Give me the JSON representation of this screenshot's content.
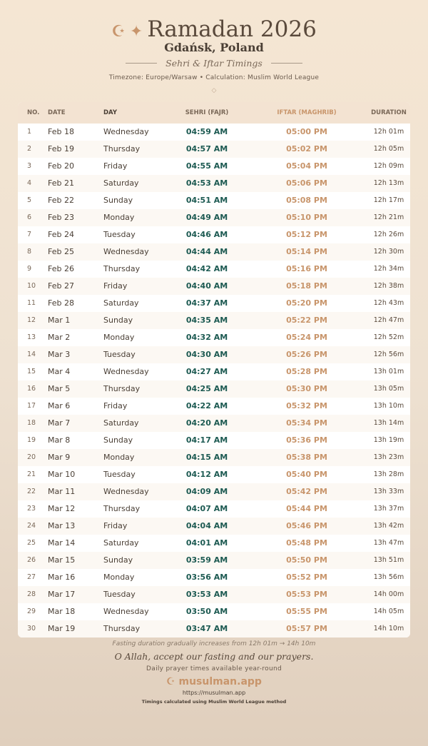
{
  "header": {
    "title": "Ramadan 2026",
    "city": "Gdańsk, Poland",
    "subtitle": "Sehri & Iftar Timings",
    "meta": "Timezone: Europe/Warsaw • Calculation: Muslim World League",
    "ornament": "◇",
    "icons": [
      "crescent-moon-icon",
      "star-icon"
    ]
  },
  "table": {
    "columns": [
      "NO.",
      "DATE",
      "DAY",
      "SEHRI (FAJR)",
      "IFTAR (MAGHRIB)",
      "DURATION"
    ],
    "rows": [
      [
        "1",
        "Feb 18",
        "Wednesday",
        "04:59 AM",
        "05:00 PM",
        "12h 01m"
      ],
      [
        "2",
        "Feb 19",
        "Thursday",
        "04:57 AM",
        "05:02 PM",
        "12h 05m"
      ],
      [
        "3",
        "Feb 20",
        "Friday",
        "04:55 AM",
        "05:04 PM",
        "12h 09m"
      ],
      [
        "4",
        "Feb 21",
        "Saturday",
        "04:53 AM",
        "05:06 PM",
        "12h 13m"
      ],
      [
        "5",
        "Feb 22",
        "Sunday",
        "04:51 AM",
        "05:08 PM",
        "12h 17m"
      ],
      [
        "6",
        "Feb 23",
        "Monday",
        "04:49 AM",
        "05:10 PM",
        "12h 21m"
      ],
      [
        "7",
        "Feb 24",
        "Tuesday",
        "04:46 AM",
        "05:12 PM",
        "12h 26m"
      ],
      [
        "8",
        "Feb 25",
        "Wednesday",
        "04:44 AM",
        "05:14 PM",
        "12h 30m"
      ],
      [
        "9",
        "Feb 26",
        "Thursday",
        "04:42 AM",
        "05:16 PM",
        "12h 34m"
      ],
      [
        "10",
        "Feb 27",
        "Friday",
        "04:40 AM",
        "05:18 PM",
        "12h 38m"
      ],
      [
        "11",
        "Feb 28",
        "Saturday",
        "04:37 AM",
        "05:20 PM",
        "12h 43m"
      ],
      [
        "12",
        "Mar 1",
        "Sunday",
        "04:35 AM",
        "05:22 PM",
        "12h 47m"
      ],
      [
        "13",
        "Mar 2",
        "Monday",
        "04:32 AM",
        "05:24 PM",
        "12h 52m"
      ],
      [
        "14",
        "Mar 3",
        "Tuesday",
        "04:30 AM",
        "05:26 PM",
        "12h 56m"
      ],
      [
        "15",
        "Mar 4",
        "Wednesday",
        "04:27 AM",
        "05:28 PM",
        "13h 01m"
      ],
      [
        "16",
        "Mar 5",
        "Thursday",
        "04:25 AM",
        "05:30 PM",
        "13h 05m"
      ],
      [
        "17",
        "Mar 6",
        "Friday",
        "04:22 AM",
        "05:32 PM",
        "13h 10m"
      ],
      [
        "18",
        "Mar 7",
        "Saturday",
        "04:20 AM",
        "05:34 PM",
        "13h 14m"
      ],
      [
        "19",
        "Mar 8",
        "Sunday",
        "04:17 AM",
        "05:36 PM",
        "13h 19m"
      ],
      [
        "20",
        "Mar 9",
        "Monday",
        "04:15 AM",
        "05:38 PM",
        "13h 23m"
      ],
      [
        "21",
        "Mar 10",
        "Tuesday",
        "04:12 AM",
        "05:40 PM",
        "13h 28m"
      ],
      [
        "22",
        "Mar 11",
        "Wednesday",
        "04:09 AM",
        "05:42 PM",
        "13h 33m"
      ],
      [
        "23",
        "Mar 12",
        "Thursday",
        "04:07 AM",
        "05:44 PM",
        "13h 37m"
      ],
      [
        "24",
        "Mar 13",
        "Friday",
        "04:04 AM",
        "05:46 PM",
        "13h 42m"
      ],
      [
        "25",
        "Mar 14",
        "Saturday",
        "04:01 AM",
        "05:48 PM",
        "13h 47m"
      ],
      [
        "26",
        "Mar 15",
        "Sunday",
        "03:59 AM",
        "05:50 PM",
        "13h 51m"
      ],
      [
        "27",
        "Mar 16",
        "Monday",
        "03:56 AM",
        "05:52 PM",
        "13h 56m"
      ],
      [
        "28",
        "Mar 17",
        "Tuesday",
        "03:53 AM",
        "05:53 PM",
        "14h 00m"
      ],
      [
        "29",
        "Mar 18",
        "Wednesday",
        "03:50 AM",
        "05:55 PM",
        "14h 05m"
      ],
      [
        "30",
        "Mar 19",
        "Thursday",
        "03:47 AM",
        "05:57 PM",
        "14h 10m"
      ]
    ]
  },
  "footer": {
    "note": "Fasting duration gradually increases from 12h 01m → 14h 10m",
    "dua": "O Allah, accept our fasting and our prayers.",
    "daily": "Daily prayer times available year-round",
    "brand": "musulman.app",
    "url": "https://musulman.app",
    "method": "Timings calculated using Muslim World League method"
  },
  "colors": {
    "accent": "#c8956b",
    "sehri": "#1d5a52",
    "text": "#4a3f35"
  }
}
